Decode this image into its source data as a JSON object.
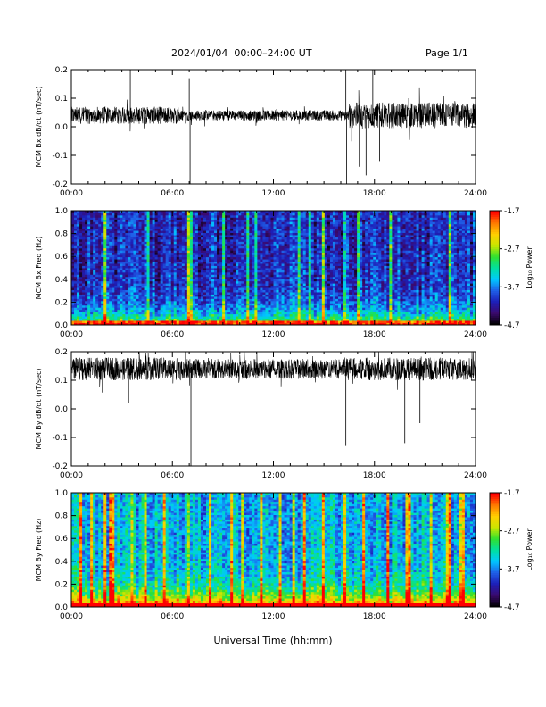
{
  "header": {
    "title": "2024/01/04  00:00–24:00 UT",
    "page": "Page 1/1"
  },
  "x_axis_label": "Universal Time (hh:mm)",
  "colors": {
    "trace": "#000000",
    "colormap": [
      "#000000",
      "#3b0a6e",
      "#1d1fb8",
      "#1f5fe8",
      "#00c8ff",
      "#00e0a0",
      "#30e030",
      "#c8e600",
      "#ffd000",
      "#ff7a00",
      "#ff0000"
    ]
  },
  "chart_data": [
    {
      "type": "line",
      "ylabel": "MCM Bx dB/dt (nT/sec)",
      "x_ticks": [
        "00:00",
        "06:00",
        "12:00",
        "18:00",
        "24:00"
      ],
      "y_ticks": [
        "-0.2",
        "-0.1",
        "0.0",
        "0.1",
        "0.2"
      ],
      "xlim": [
        0,
        24
      ],
      "ylim": [
        -0.2,
        0.2
      ],
      "baseline": 0.04,
      "noise": [
        {
          "from": 0,
          "to": 6.5,
          "amp": 0.03
        },
        {
          "from": 6.5,
          "to": 16.5,
          "amp": 0.018
        },
        {
          "from": 16.5,
          "to": 24,
          "amp": 0.045
        }
      ],
      "spikes": [
        {
          "t": 3.5,
          "y": 0.2
        },
        {
          "t": 7.0,
          "y": 0.17
        },
        {
          "t": 7.05,
          "y": -0.2
        },
        {
          "t": 16.3,
          "y": 0.2
        },
        {
          "t": 16.35,
          "y": -0.2
        },
        {
          "t": 17.9,
          "y": 0.2
        },
        {
          "t": 17.1,
          "y": -0.14
        },
        {
          "t": 17.5,
          "y": -0.17
        },
        {
          "t": 18.3,
          "y": -0.12
        }
      ]
    },
    {
      "type": "heatmap",
      "ylabel": "MCM Bx Freq (Hz)",
      "colorbar_label": "Log₁₀ Power",
      "colorbar_ticks": [
        "-1.7",
        "-2.7",
        "-3.7",
        "-4.7"
      ],
      "x_ticks": [
        "00:00",
        "06:00",
        "12:00",
        "18:00",
        "24:00"
      ],
      "y_ticks": [
        "0.0",
        "0.2",
        "0.4",
        "0.6",
        "0.8",
        "1.0"
      ],
      "xlim": [
        0,
        24
      ],
      "ylim": [
        0.0,
        1.0
      ],
      "zlim": [
        -4.7,
        -1.7
      ],
      "background_level": 0.12,
      "low_band_level": 0.55,
      "streaks": [
        2.0,
        4.5,
        7.0,
        7.1,
        9.0,
        10.5,
        11.0,
        13.5,
        14.2,
        15.0,
        16.2,
        17.0,
        19.0,
        22.5
      ]
    },
    {
      "type": "line",
      "ylabel": "MCM By dB/dt (nT/sec)",
      "x_ticks": [
        "00:00",
        "06:00",
        "12:00",
        "18:00",
        "24:00"
      ],
      "y_ticks": [
        "-0.2",
        "-0.1",
        "0.0",
        "0.1",
        "0.2"
      ],
      "xlim": [
        0,
        24
      ],
      "ylim": [
        -0.2,
        0.2
      ],
      "baseline": 0.14,
      "noise": [
        {
          "from": 0,
          "to": 6.5,
          "amp": 0.04
        },
        {
          "from": 6.5,
          "to": 16.0,
          "amp": 0.035
        },
        {
          "from": 16.0,
          "to": 24,
          "amp": 0.04
        }
      ],
      "spikes": [
        {
          "t": 7.1,
          "y": -0.2
        },
        {
          "t": 3.4,
          "y": 0.02
        },
        {
          "t": 16.3,
          "y": -0.13
        },
        {
          "t": 19.8,
          "y": -0.12
        },
        {
          "t": 20.7,
          "y": -0.05
        }
      ]
    },
    {
      "type": "heatmap",
      "ylabel": "MCM By Freq (Hz)",
      "colorbar_label": "Log₁₀ Power",
      "colorbar_ticks": [
        "-1.7",
        "-2.7",
        "-3.7",
        "-4.7"
      ],
      "x_ticks": [
        "00:00",
        "06:00",
        "12:00",
        "18:00",
        "24:00"
      ],
      "y_ticks": [
        "0.0",
        "0.2",
        "0.4",
        "0.6",
        "0.8",
        "1.0"
      ],
      "xlim": [
        0,
        24
      ],
      "ylim": [
        0.0,
        1.0
      ],
      "zlim": [
        -4.7,
        -1.7
      ],
      "background_level": 0.3,
      "low_band_level": 0.65,
      "streaks": [
        0.5,
        1.2,
        2.0,
        2.4,
        3.6,
        4.4,
        5.5,
        7.0,
        8.3,
        9.5,
        10.2,
        11.3,
        12.4,
        13.2,
        13.9,
        15.0,
        16.3,
        17.4,
        18.8,
        20.0,
        21.3,
        22.4,
        23.2
      ]
    }
  ]
}
